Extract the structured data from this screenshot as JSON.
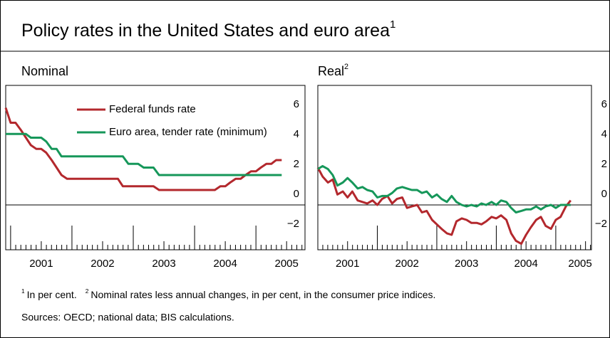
{
  "header": {
    "title": "Policy rates in the United States and euro area",
    "note": "1"
  },
  "chart_data": [
    {
      "type": "line",
      "title": "Nominal",
      "xlim": [
        2000.92,
        2005.8
      ],
      "xticks": [
        2001,
        2002,
        2003,
        2004,
        2005
      ],
      "ylim": [
        -3,
        8
      ],
      "yticks": [
        {
          "value": -2,
          "label": "−2"
        },
        0,
        2,
        4,
        6
      ],
      "grid": false,
      "legend": "top",
      "x": [
        2000.92,
        2001.0,
        2001.08,
        2001.17,
        2001.25,
        2001.33,
        2001.42,
        2001.5,
        2001.58,
        2001.67,
        2001.75,
        2001.83,
        2001.92,
        2002.0,
        2002.08,
        2002.17,
        2002.25,
        2002.33,
        2002.42,
        2002.5,
        2002.58,
        2002.67,
        2002.75,
        2002.83,
        2002.92,
        2003.0,
        2003.08,
        2003.17,
        2003.25,
        2003.33,
        2003.42,
        2003.5,
        2003.58,
        2003.67,
        2003.75,
        2003.83,
        2003.92,
        2004.0,
        2004.08,
        2004.17,
        2004.25,
        2004.33,
        2004.42,
        2004.5,
        2004.58,
        2004.67,
        2004.75,
        2004.83,
        2004.92,
        2005.0,
        2005.08,
        2005.17,
        2005.25,
        2005.33,
        2005.42
      ],
      "series": [
        {
          "name": "Federal funds rate",
          "color": "#b3282d",
          "values": [
            6.5,
            5.5,
            5.5,
            5.0,
            4.5,
            4.0,
            3.75,
            3.75,
            3.5,
            3.0,
            2.5,
            2.0,
            1.75,
            1.75,
            1.75,
            1.75,
            1.75,
            1.75,
            1.75,
            1.75,
            1.75,
            1.75,
            1.75,
            1.25,
            1.25,
            1.25,
            1.25,
            1.25,
            1.25,
            1.25,
            1.0,
            1.0,
            1.0,
            1.0,
            1.0,
            1.0,
            1.0,
            1.0,
            1.0,
            1.0,
            1.0,
            1.0,
            1.25,
            1.25,
            1.5,
            1.75,
            1.75,
            2.0,
            2.25,
            2.25,
            2.5,
            2.75,
            2.75,
            3.0,
            3.0
          ]
        },
        {
          "name": "Euro area, tender rate (minimum)",
          "color": "#16975a",
          "values": [
            4.75,
            4.75,
            4.75,
            4.75,
            4.75,
            4.5,
            4.5,
            4.5,
            4.25,
            3.75,
            3.75,
            3.25,
            3.25,
            3.25,
            3.25,
            3.25,
            3.25,
            3.25,
            3.25,
            3.25,
            3.25,
            3.25,
            3.25,
            3.25,
            2.75,
            2.75,
            2.75,
            2.5,
            2.5,
            2.5,
            2.0,
            2.0,
            2.0,
            2.0,
            2.0,
            2.0,
            2.0,
            2.0,
            2.0,
            2.0,
            2.0,
            2.0,
            2.0,
            2.0,
            2.0,
            2.0,
            2.0,
            2.0,
            2.0,
            2.0,
            2.0,
            2.0,
            2.0,
            2.0,
            2.0
          ]
        }
      ]
    },
    {
      "type": "line",
      "title": "Real",
      "note": "2",
      "xlim": [
        2001.0,
        2005.6
      ],
      "xticks": [
        2001,
        2002,
        2003,
        2004,
        2005
      ],
      "ylim": [
        -3,
        8
      ],
      "yticks": [
        {
          "value": -2,
          "label": "−2"
        },
        0,
        2,
        4,
        6
      ],
      "grid": false,
      "x": [
        2001.0,
        2001.08,
        2001.17,
        2001.25,
        2001.33,
        2001.42,
        2001.5,
        2001.58,
        2001.67,
        2001.75,
        2001.83,
        2001.92,
        2002.0,
        2002.08,
        2002.17,
        2002.25,
        2002.33,
        2002.42,
        2002.5,
        2002.58,
        2002.67,
        2002.75,
        2002.83,
        2002.92,
        2003.0,
        2003.08,
        2003.17,
        2003.25,
        2003.33,
        2003.42,
        2003.5,
        2003.58,
        2003.67,
        2003.75,
        2003.83,
        2003.92,
        2004.0,
        2004.08,
        2004.17,
        2004.25,
        2004.33,
        2004.42,
        2004.5,
        2004.58,
        2004.67,
        2004.75,
        2004.83,
        2004.92,
        2005.0,
        2005.08,
        2005.17,
        2005.25
      ],
      "series": [
        {
          "name": "Federal funds rate",
          "color": "#b3282d",
          "values": [
            2.5,
            1.9,
            1.5,
            1.7,
            0.7,
            0.9,
            0.5,
            0.9,
            0.3,
            0.2,
            0.1,
            0.3,
            0.0,
            0.4,
            0.6,
            0.1,
            0.4,
            0.5,
            -0.2,
            -0.1,
            0.0,
            -0.5,
            -0.4,
            -1.0,
            -1.3,
            -1.6,
            -1.9,
            -2.0,
            -1.1,
            -0.9,
            -1.0,
            -1.2,
            -1.2,
            -1.3,
            -1.1,
            -0.8,
            -0.9,
            -0.7,
            -1.0,
            -1.9,
            -2.4,
            -2.6,
            -2.0,
            -1.5,
            -1.0,
            -0.8,
            -1.4,
            -1.6,
            -1.0,
            -0.8,
            -0.1,
            0.3
          ]
        },
        {
          "name": "Euro area, tender rate (minimum)",
          "color": "#16975a",
          "values": [
            2.4,
            2.6,
            2.4,
            2.0,
            1.3,
            1.5,
            1.8,
            1.5,
            1.1,
            1.2,
            1.0,
            0.9,
            0.5,
            0.6,
            0.6,
            0.8,
            1.1,
            1.2,
            1.1,
            1.0,
            1.0,
            0.8,
            0.9,
            0.5,
            0.7,
            0.4,
            0.2,
            0.6,
            0.2,
            0.0,
            -0.1,
            0.0,
            -0.1,
            0.1,
            0.0,
            0.2,
            0.0,
            0.3,
            0.2,
            -0.2,
            -0.5,
            -0.4,
            -0.3,
            -0.3,
            -0.1,
            -0.3,
            -0.1,
            0.0,
            -0.2,
            0.0,
            0.0,
            0.0
          ]
        }
      ]
    }
  ],
  "footnotes": [
    {
      "mark": "1",
      "text": "In per cent."
    },
    {
      "mark": "2",
      "text": "Nominal rates less annual changes, in per cent, in the consumer price indices."
    }
  ],
  "sources": "Sources: OECD; national data; BIS calculations."
}
